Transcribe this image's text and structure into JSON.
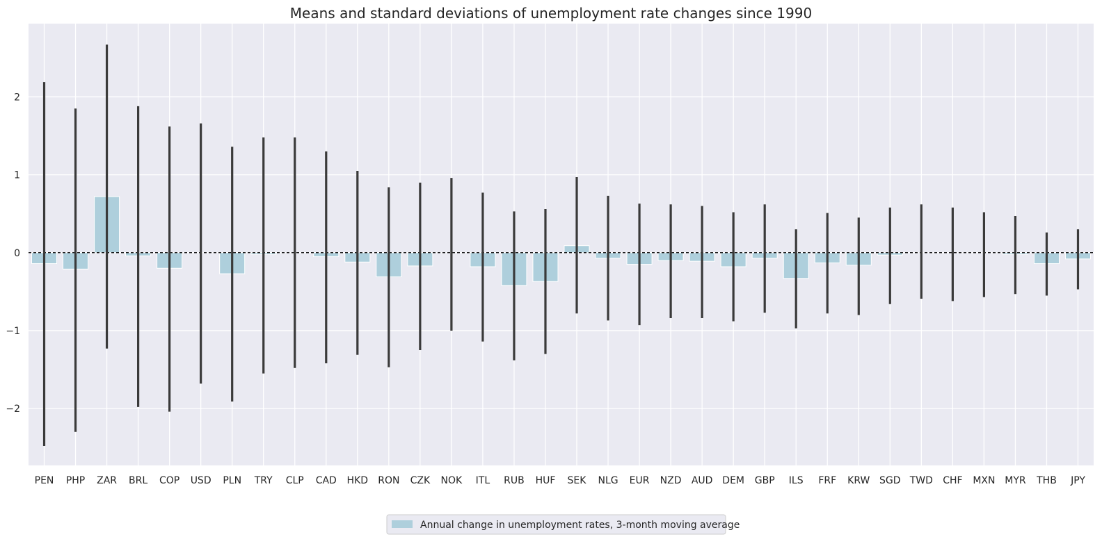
{
  "chart_data": {
    "type": "bar",
    "title": "Means and standard deviations of unemployment rate changes since 1990",
    "xlabel": "",
    "ylabel": "",
    "categories": [
      "PEN",
      "PHP",
      "ZAR",
      "BRL",
      "COP",
      "USD",
      "PLN",
      "TRY",
      "CLP",
      "CAD",
      "HKD",
      "RON",
      "CZK",
      "NOK",
      "ITL",
      "RUB",
      "HUF",
      "SEK",
      "NLG",
      "EUR",
      "NZD",
      "AUD",
      "DEM",
      "GBP",
      "ILS",
      "FRF",
      "KRW",
      "SGD",
      "TWD",
      "CHF",
      "MXN",
      "MYR",
      "THB",
      "JPY"
    ],
    "series": [
      {
        "name": "Annual change in unemployment rates, 3-month moving average",
        "values": [
          -0.14,
          -0.21,
          0.72,
          -0.04,
          -0.2,
          0.0,
          -0.27,
          -0.02,
          0.0,
          -0.05,
          -0.12,
          -0.31,
          -0.17,
          0.0,
          -0.18,
          -0.42,
          -0.37,
          0.09,
          -0.07,
          -0.15,
          -0.1,
          -0.11,
          -0.18,
          -0.07,
          -0.33,
          -0.13,
          -0.16,
          -0.03,
          0.0,
          0.0,
          0.0,
          -0.02,
          -0.14,
          -0.08
        ],
        "error_low": [
          -2.48,
          -2.3,
          -1.23,
          -1.98,
          -2.04,
          -1.68,
          -1.91,
          -1.55,
          -1.48,
          -1.42,
          -1.31,
          -1.47,
          -1.25,
          -1.0,
          -1.14,
          -1.38,
          -1.3,
          -0.78,
          -0.87,
          -0.93,
          -0.84,
          -0.84,
          -0.88,
          -0.77,
          -0.97,
          -0.78,
          -0.8,
          -0.66,
          -0.59,
          -0.62,
          -0.57,
          -0.53,
          -0.55,
          -0.47
        ],
        "error_high": [
          2.19,
          1.85,
          2.67,
          1.88,
          1.62,
          1.66,
          1.36,
          1.48,
          1.48,
          1.3,
          1.05,
          0.84,
          0.9,
          0.96,
          0.77,
          0.53,
          0.56,
          0.97,
          0.73,
          0.63,
          0.62,
          0.6,
          0.52,
          0.62,
          0.3,
          0.51,
          0.45,
          0.58,
          0.62,
          0.58,
          0.52,
          0.47,
          0.26,
          0.3
        ]
      }
    ],
    "yticks": [
      -2,
      -1,
      0,
      1,
      2
    ],
    "ytick_labels": [
      "−2",
      "−1",
      "0",
      "1",
      "2"
    ],
    "ylim": [
      -2.73,
      2.94
    ],
    "reference_line": 0,
    "grid": true,
    "legend_position": "bottom-center",
    "colors": {
      "bar": "#aecfdc",
      "error": "#3a3a3a",
      "background": "#eaeaf2",
      "grid": "#ffffff",
      "text": "#262626",
      "zero_line": "#000000"
    }
  }
}
